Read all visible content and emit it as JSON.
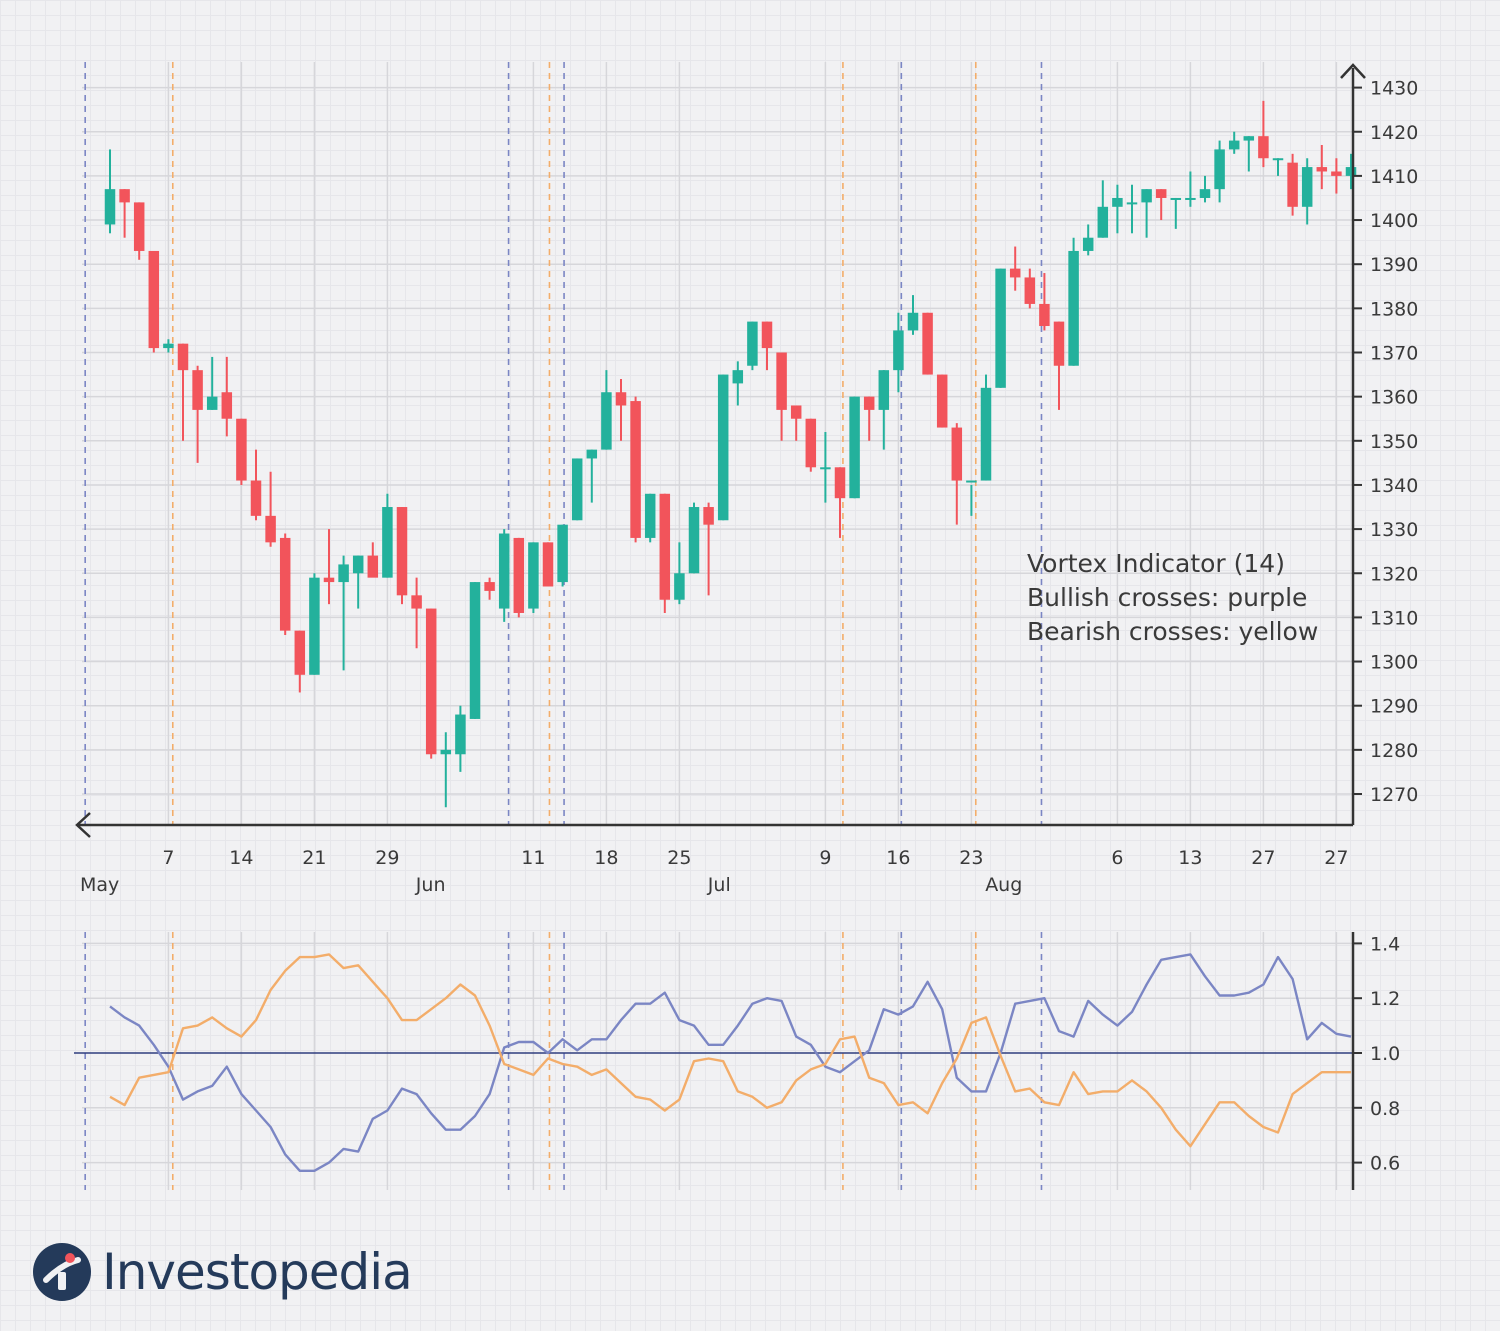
{
  "brand": {
    "name": "Investopedia",
    "logo_icon": "investopedia-logo-icon"
  },
  "legend": {
    "lines": [
      "Vortex Indicator (14)",
      "Bullish crosses: purple",
      "Bearish crosses: yellow"
    ]
  },
  "colors": {
    "bull_candle": "#23b19c",
    "bear_candle": "#f2545b",
    "vi_plus": "#7b86c4",
    "vi_minus": "#f3ad6a",
    "bullish_cross": "#7b86c4",
    "bearish_cross": "#f3ad6a",
    "axis": "#333333",
    "baseline": "#2f3d7e"
  },
  "chart_data": [
    {
      "type": "candlestick",
      "ylim": [
        1264,
        1434
      ],
      "yticks": [
        1270,
        1280,
        1290,
        1300,
        1310,
        1320,
        1330,
        1340,
        1350,
        1360,
        1370,
        1380,
        1390,
        1400,
        1410,
        1420,
        1430
      ],
      "xticks": [
        {
          "label": "7",
          "i": 4
        },
        {
          "label": "14",
          "i": 9
        },
        {
          "label": "21",
          "i": 14
        },
        {
          "label": "29",
          "i": 19
        },
        {
          "label": "11",
          "i": 29
        },
        {
          "label": "18",
          "i": 34
        },
        {
          "label": "25",
          "i": 39
        },
        {
          "label": "9",
          "i": 49
        },
        {
          "label": "16",
          "i": 54
        },
        {
          "label": "23",
          "i": 59
        },
        {
          "label": "6",
          "i": 69
        },
        {
          "label": "13",
          "i": 74
        },
        {
          "label": "27",
          "i": 79
        },
        {
          "label": "27",
          "i": 84
        }
      ],
      "month_labels": [
        {
          "label": "May",
          "i": 0
        },
        {
          "label": "Jun",
          "i": 23
        },
        {
          "label": "Jul",
          "i": 43
        },
        {
          "label": "Aug",
          "i": 62
        }
      ],
      "ohlc": [
        [
          1399,
          1416,
          1397,
          1407
        ],
        [
          1407,
          1407,
          1396,
          1404
        ],
        [
          1404,
          1404,
          1391,
          1393
        ],
        [
          1393,
          1393,
          1370,
          1371
        ],
        [
          1371,
          1373,
          1370,
          1372
        ],
        [
          1372,
          1372,
          1350,
          1366
        ],
        [
          1366,
          1367,
          1345,
          1357
        ],
        [
          1357,
          1369,
          1357,
          1360
        ],
        [
          1361,
          1369,
          1351,
          1355
        ],
        [
          1355,
          1355,
          1340,
          1341
        ],
        [
          1341,
          1348,
          1332,
          1333
        ],
        [
          1333,
          1343,
          1326,
          1327
        ],
        [
          1328,
          1329,
          1306,
          1307
        ],
        [
          1307,
          1307,
          1293,
          1297
        ],
        [
          1297,
          1320,
          1297,
          1319
        ],
        [
          1319,
          1330,
          1313,
          1318
        ],
        [
          1318,
          1324,
          1298,
          1322
        ],
        [
          1320,
          1324,
          1312,
          1324
        ],
        [
          1324,
          1327,
          1320,
          1319
        ],
        [
          1319,
          1338,
          1319,
          1335
        ],
        [
          1335,
          1335,
          1313,
          1315
        ],
        [
          1315,
          1319,
          1303,
          1312
        ],
        [
          1312,
          1312,
          1278,
          1279
        ],
        [
          1279,
          1284,
          1267,
          1280
        ],
        [
          1279,
          1290,
          1275,
          1288
        ],
        [
          1287,
          1318,
          1287,
          1318
        ],
        [
          1318,
          1319,
          1314,
          1316
        ],
        [
          1312,
          1330,
          1309,
          1329
        ],
        [
          1328,
          1328,
          1310,
          1311
        ],
        [
          1312,
          1327,
          1311,
          1327
        ],
        [
          1327,
          1327,
          1317,
          1317
        ],
        [
          1318,
          1331,
          1317,
          1331
        ],
        [
          1332,
          1346,
          1332,
          1346
        ],
        [
          1346,
          1348,
          1336,
          1348
        ],
        [
          1348,
          1366,
          1348,
          1361
        ],
        [
          1361,
          1364,
          1350,
          1358
        ],
        [
          1359,
          1360,
          1327,
          1328
        ],
        [
          1328,
          1338,
          1327,
          1338
        ],
        [
          1338,
          1338,
          1311,
          1314
        ],
        [
          1314,
          1327,
          1313,
          1320
        ],
        [
          1320,
          1336,
          1320,
          1335
        ],
        [
          1335,
          1336,
          1315,
          1331
        ],
        [
          1332,
          1365,
          1332,
          1365
        ],
        [
          1363,
          1368,
          1358,
          1366
        ],
        [
          1367,
          1377,
          1366,
          1377
        ],
        [
          1377,
          1377,
          1366,
          1371
        ],
        [
          1370,
          1370,
          1350,
          1357
        ],
        [
          1358,
          1358,
          1350,
          1355
        ],
        [
          1355,
          1355,
          1343,
          1344
        ],
        [
          1344,
          1352,
          1336,
          1344
        ],
        [
          1344,
          1344,
          1328,
          1337
        ],
        [
          1337,
          1360,
          1337,
          1360
        ],
        [
          1360,
          1360,
          1350,
          1357
        ],
        [
          1357,
          1366,
          1348,
          1366
        ],
        [
          1366,
          1379,
          1361,
          1375
        ],
        [
          1375,
          1383,
          1374,
          1379
        ],
        [
          1379,
          1379,
          1365,
          1365
        ],
        [
          1365,
          1365,
          1353,
          1353
        ],
        [
          1353,
          1354,
          1331,
          1341
        ],
        [
          1341,
          1340,
          1333,
          1341
        ],
        [
          1341,
          1365,
          1341,
          1362
        ],
        [
          1362,
          1389,
          1362,
          1389
        ],
        [
          1389,
          1394,
          1384,
          1387
        ],
        [
          1387,
          1389,
          1380,
          1381
        ],
        [
          1381,
          1388,
          1375,
          1376
        ],
        [
          1377,
          1377,
          1357,
          1367
        ],
        [
          1367,
          1396,
          1367,
          1393
        ],
        [
          1393,
          1399,
          1392,
          1396
        ],
        [
          1396,
          1409,
          1396,
          1403
        ],
        [
          1403,
          1408,
          1397,
          1405
        ],
        [
          1404,
          1408,
          1397,
          1404
        ],
        [
          1404,
          1407,
          1396,
          1407
        ],
        [
          1407,
          1407,
          1400,
          1405
        ],
        [
          1405,
          1405,
          1398,
          1405
        ],
        [
          1405,
          1411,
          1403,
          1405
        ],
        [
          1405,
          1410,
          1404,
          1407
        ],
        [
          1407,
          1418,
          1404,
          1416
        ],
        [
          1416,
          1420,
          1415,
          1418
        ],
        [
          1418,
          1419,
          1411,
          1419
        ],
        [
          1419,
          1427,
          1412,
          1414
        ],
        [
          1414,
          1414,
          1410,
          1414
        ],
        [
          1413,
          1415,
          1401,
          1403
        ],
        [
          1403,
          1414,
          1399,
          1412
        ],
        [
          1412,
          1417,
          1407,
          1411
        ],
        [
          1411,
          1414,
          1406,
          1410
        ],
        [
          1410,
          1415,
          1407,
          1412
        ]
      ]
    },
    {
      "type": "line",
      "ylim": [
        0.5,
        1.44
      ],
      "yticks": [
        0.6,
        0.8,
        1.0,
        1.2,
        1.4
      ],
      "baseline": 1.0,
      "series": [
        {
          "key": "vi_plus",
          "values": [
            1.17,
            1.13,
            1.1,
            1.03,
            0.95,
            0.83,
            0.86,
            0.88,
            0.95,
            0.85,
            0.79,
            0.73,
            0.63,
            0.57,
            0.57,
            0.6,
            0.65,
            0.64,
            0.76,
            0.79,
            0.87,
            0.85,
            0.78,
            0.72,
            0.72,
            0.77,
            0.85,
            1.02,
            1.04,
            1.04,
            1.0,
            1.05,
            1.01,
            1.05,
            1.05,
            1.12,
            1.18,
            1.18,
            1.22,
            1.12,
            1.1,
            1.03,
            1.03,
            1.1,
            1.18,
            1.2,
            1.19,
            1.06,
            1.03,
            0.95,
            0.93,
            0.97,
            1.01,
            1.16,
            1.14,
            1.17,
            1.26,
            1.16,
            0.91,
            0.86,
            0.86,
            1.0,
            1.18,
            1.19,
            1.2,
            1.08,
            1.06,
            1.19,
            1.14,
            1.1,
            1.15,
            1.25,
            1.34,
            1.35,
            1.36,
            1.28,
            1.21,
            1.21,
            1.22,
            1.25,
            1.35,
            1.27,
            1.05,
            1.11,
            1.07,
            1.06
          ]
        },
        {
          "key": "vi_minus",
          "values": [
            0.84,
            0.81,
            0.91,
            0.92,
            0.93,
            1.09,
            1.1,
            1.13,
            1.09,
            1.06,
            1.12,
            1.23,
            1.3,
            1.35,
            1.35,
            1.36,
            1.31,
            1.32,
            1.26,
            1.2,
            1.12,
            1.12,
            1.16,
            1.2,
            1.25,
            1.21,
            1.1,
            0.96,
            0.94,
            0.92,
            0.98,
            0.96,
            0.95,
            0.92,
            0.94,
            0.89,
            0.84,
            0.83,
            0.79,
            0.83,
            0.97,
            0.98,
            0.97,
            0.86,
            0.84,
            0.8,
            0.82,
            0.9,
            0.94,
            0.96,
            1.05,
            1.06,
            0.91,
            0.89,
            0.81,
            0.82,
            0.78,
            0.89,
            0.98,
            1.11,
            1.13,
            0.99,
            0.86,
            0.87,
            0.82,
            0.81,
            0.93,
            0.85,
            0.86,
            0.86,
            0.9,
            0.86,
            0.8,
            0.72,
            0.66,
            0.74,
            0.82,
            0.82,
            0.77,
            0.73,
            0.71,
            0.85,
            0.89,
            0.93,
            0.93,
            0.93
          ]
        }
      ]
    }
  ],
  "crosses": {
    "bullish": [
      -1.7,
      27.3,
      31.1,
      54.2,
      63.8
    ],
    "bearish": [
      4.3,
      30.1,
      50.2,
      59.3
    ]
  }
}
